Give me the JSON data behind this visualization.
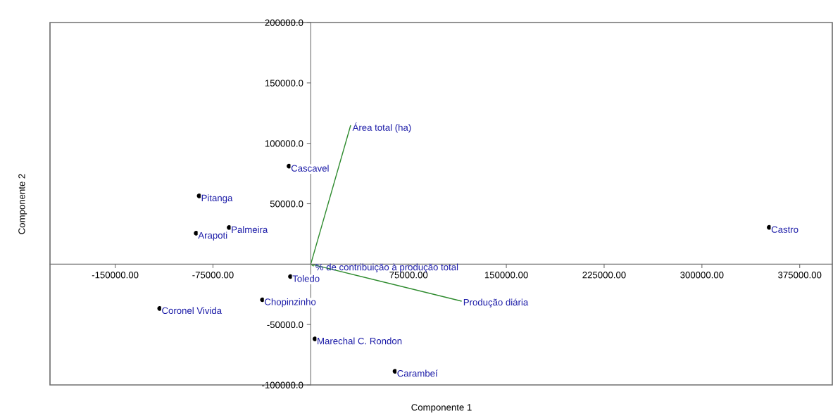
{
  "chart_data": {
    "type": "scatter",
    "xlabel": "Componente 1",
    "ylabel": "Componente 2",
    "xlim": [
      -200000,
      400000
    ],
    "ylim": [
      -100000,
      200000
    ],
    "xticks": [
      {
        "value": -150000,
        "label": "-150000.00"
      },
      {
        "value": -75000,
        "label": "-75000.00"
      },
      {
        "value": 75000,
        "label": "75000.00"
      },
      {
        "value": 150000,
        "label": "150000.00"
      },
      {
        "value": 225000,
        "label": "225000.00"
      },
      {
        "value": 300000,
        "label": "300000.00"
      },
      {
        "value": 375000,
        "label": "375000.00"
      }
    ],
    "yticks": [
      {
        "value": -100000,
        "label": "-100000.0"
      },
      {
        "value": -50000,
        "label": "-50000.0"
      },
      {
        "value": 50000,
        "label": "50000.0"
      },
      {
        "value": 100000,
        "label": "100000.0"
      },
      {
        "value": 150000,
        "label": "150000.0"
      },
      {
        "value": 200000,
        "label": "200000.0"
      }
    ],
    "grid": false,
    "legend": false,
    "series": [
      {
        "color": "#000000",
        "marker": "circle",
        "x": [
          -16700,
          -85600,
          -62600,
          -87900,
          351600,
          -15600,
          -37100,
          -115900,
          3200,
          64600
        ],
        "values": [
          81100,
          56500,
          30300,
          25600,
          30400,
          -10300,
          -29500,
          -36700,
          -61900,
          -88700
        ]
      },
      {
        "type": "line",
        "name": "Área total (ha)",
        "color": "#2e8b2e",
        "marker": "none",
        "x": [
          0,
          30500
        ],
        "values": [
          0,
          114600
        ]
      },
      {
        "type": "line",
        "name": "Produção diária",
        "color": "#2e8b2e",
        "marker": "none",
        "x": [
          0,
          115400
        ],
        "values": [
          0,
          -30600
        ]
      },
      {
        "type": "line",
        "name": "% de contribuição à produção total",
        "color": "#2e8b2e",
        "marker": "none",
        "x": [
          0,
          2000
        ],
        "values": [
          0,
          -1500
        ]
      }
    ],
    "annotations": [
      {
        "text": "Cascavel",
        "x": -16700,
        "y": 81100
      },
      {
        "text": "Pitanga",
        "x": -85600,
        "y": 56500
      },
      {
        "text": "Palmeira",
        "x": -62600,
        "y": 30300
      },
      {
        "text": "Arapoti",
        "x": -87900,
        "y": 25600
      },
      {
        "text": "Castro",
        "x": 351600,
        "y": 30400
      },
      {
        "text": "Toledo",
        "x": -15600,
        "y": -10300
      },
      {
        "text": "Chopinzinho",
        "x": -37100,
        "y": -29500
      },
      {
        "text": "Coronel Vivida",
        "x": -115900,
        "y": -36700
      },
      {
        "text": "Marechal C. Rondon",
        "x": 3200,
        "y": -61900
      },
      {
        "text": "Carambeí",
        "x": 64600,
        "y": -88700
      }
    ]
  }
}
